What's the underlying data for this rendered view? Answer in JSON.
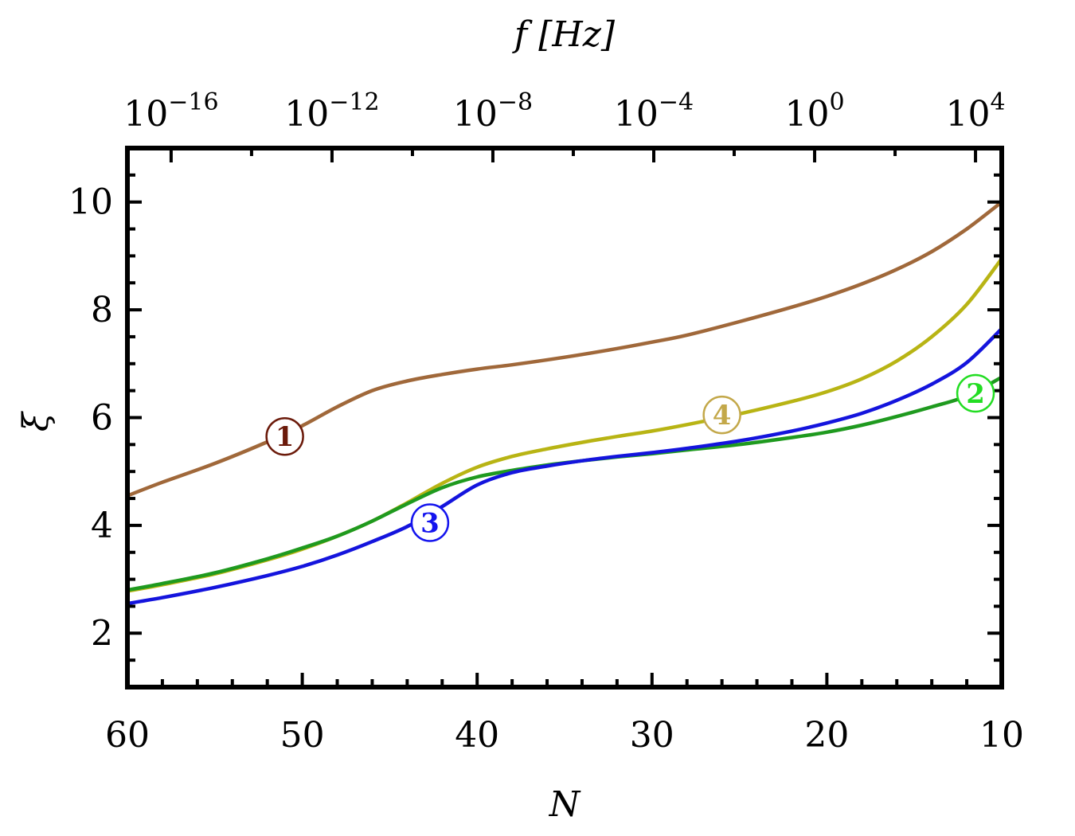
{
  "chart_data": {
    "type": "line",
    "xlabel": "N",
    "ylabel": "ξ",
    "top_axis_label": "f [Hz]",
    "xlim": [
      60,
      10
    ],
    "ylim": [
      1,
      11
    ],
    "x_reversed": true,
    "x_ticks": [
      60,
      50,
      40,
      30,
      20,
      10
    ],
    "x_tick_labels": [
      "60",
      "50",
      "40",
      "30",
      "20",
      "10"
    ],
    "y_ticks": [
      2,
      4,
      6,
      8,
      10
    ],
    "y_tick_labels": [
      "2",
      "4",
      "6",
      "8",
      "10"
    ],
    "top_ticks": [
      {
        "N": 57.5,
        "base": "10",
        "exp": "−16"
      },
      {
        "N": 48.3,
        "base": "10",
        "exp": "−12"
      },
      {
        "N": 39.1,
        "base": "10",
        "exp": "−8"
      },
      {
        "N": 29.9,
        "base": "10",
        "exp": "−4"
      },
      {
        "N": 20.7,
        "base": "10",
        "exp": "0"
      },
      {
        "N": 11.5,
        "base": "10",
        "exp": "4"
      }
    ],
    "grid": false,
    "series": [
      {
        "name": "1",
        "color": "#a0683a",
        "label_color": "#6b1a0a",
        "label_at": [
          51,
          5.65
        ],
        "x": [
          60,
          58,
          55,
          52,
          50,
          48,
          46,
          44,
          42,
          40,
          38,
          35,
          32,
          30,
          28,
          25,
          22,
          20,
          18,
          16,
          14,
          12,
          10
        ],
        "y": [
          4.55,
          4.8,
          5.15,
          5.55,
          5.85,
          6.2,
          6.5,
          6.68,
          6.8,
          6.9,
          6.98,
          7.12,
          7.28,
          7.4,
          7.53,
          7.78,
          8.05,
          8.25,
          8.48,
          8.75,
          9.08,
          9.5,
          10.0
        ]
      },
      {
        "name": "2",
        "color": "#1f9a1f",
        "label_color": "#22dd22",
        "label_at": [
          11.5,
          6.45
        ],
        "x": [
          60,
          58,
          55,
          52,
          50,
          48,
          46,
          44,
          42,
          40,
          38,
          36,
          34,
          32,
          30,
          28,
          25,
          22,
          20,
          18,
          16,
          14,
          12,
          10
        ],
        "y": [
          2.8,
          2.92,
          3.12,
          3.38,
          3.58,
          3.8,
          4.08,
          4.4,
          4.7,
          4.9,
          5.02,
          5.12,
          5.2,
          5.27,
          5.33,
          5.4,
          5.5,
          5.63,
          5.73,
          5.86,
          6.02,
          6.2,
          6.4,
          6.75
        ]
      },
      {
        "name": "3",
        "color": "#1414dd",
        "label_color": "#1414ee",
        "label_at": [
          42.7,
          4.05
        ],
        "x": [
          60,
          58,
          55,
          52,
          50,
          48,
          46,
          44,
          42,
          40,
          38,
          36,
          34,
          32,
          30,
          28,
          25,
          22,
          20,
          18,
          16,
          14,
          12,
          10
        ],
        "y": [
          2.55,
          2.66,
          2.85,
          3.07,
          3.24,
          3.45,
          3.7,
          3.98,
          4.35,
          4.75,
          4.98,
          5.1,
          5.2,
          5.28,
          5.35,
          5.43,
          5.57,
          5.75,
          5.9,
          6.08,
          6.32,
          6.62,
          7.02,
          7.65
        ]
      },
      {
        "name": "4",
        "color": "#b8b414",
        "label_color": "#c3a84a",
        "label_at": [
          26,
          6.05
        ],
        "x": [
          60,
          58,
          55,
          52,
          50,
          48,
          46,
          44,
          42,
          40,
          38,
          36,
          34,
          32,
          30,
          28,
          25,
          22,
          20,
          18,
          16,
          14,
          12,
          10
        ],
        "y": [
          2.78,
          2.9,
          3.1,
          3.36,
          3.56,
          3.8,
          4.08,
          4.42,
          4.78,
          5.08,
          5.28,
          5.42,
          5.54,
          5.65,
          5.75,
          5.87,
          6.07,
          6.3,
          6.48,
          6.72,
          7.05,
          7.5,
          8.1,
          8.95
        ]
      }
    ]
  }
}
